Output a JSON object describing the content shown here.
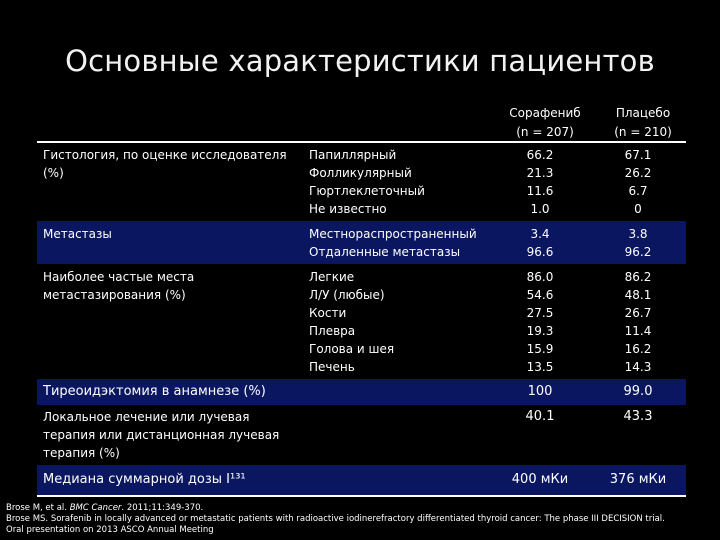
{
  "title": "Основные характеристики пациентов",
  "columns": {
    "col1": [
      "Сорафениб",
      "(n = 207)"
    ],
    "col2": [
      "Плацебо",
      "(n = 210)"
    ]
  },
  "rows": [
    {
      "label": "Гистология, по оценке исследователя (%)",
      "sub": "Папиллярный\nФолликулярный\nГюртлеклеточный\nНе известно",
      "v1": "66.2\n21.3\n11.6\n1.0",
      "v2": "67.1\n26.2\n6.7\n0"
    },
    {
      "label": "Метастазы",
      "sub": "Местнораспространенный\nОтдаленные метастазы",
      "v1": "3.4\n96.6",
      "v2": "3.8\n96.2"
    },
    {
      "label": "Наиболее частые места метастазирования (%)",
      "sub": "Легкие\nЛ/У (любые)\nКости\nПлевра\nГолова и шея\nПечень",
      "v1": "86.0\n54.6\n27.5\n19.3\n15.9\n13.5",
      "v2": "86.2\n48.1\n26.7\n11.4\n16.2\n14.3"
    },
    {
      "label": "Тиреоидэктомия в анамнезе (%)",
      "sub": "",
      "v1": "100",
      "v2": "99.0"
    },
    {
      "label": "Локальное лечение или лучевая терапия или дистанционная лучевая терапия (%)",
      "sub": "",
      "v1": "40.1",
      "v2": "43.3"
    },
    {
      "label": "Медиана суммарной дозы I¹³¹",
      "sub": "",
      "v1": "400 мКи",
      "v2": "376 мКи"
    }
  ],
  "references": {
    "ref1_author": "Brose M, et al.",
    "ref1_journal": "BMC Cancer",
    "ref1_rest": ". 2011;11:349-370.",
    "ref2": "Brose MS. Sorafenib in locally advanced or metastatic patients with radioactive iodinerefractory differentiated thyroid cancer: The phase III DECISION trial.",
    "ref3": "Oral presentation on 2013 ASCO Annual Meeting"
  }
}
